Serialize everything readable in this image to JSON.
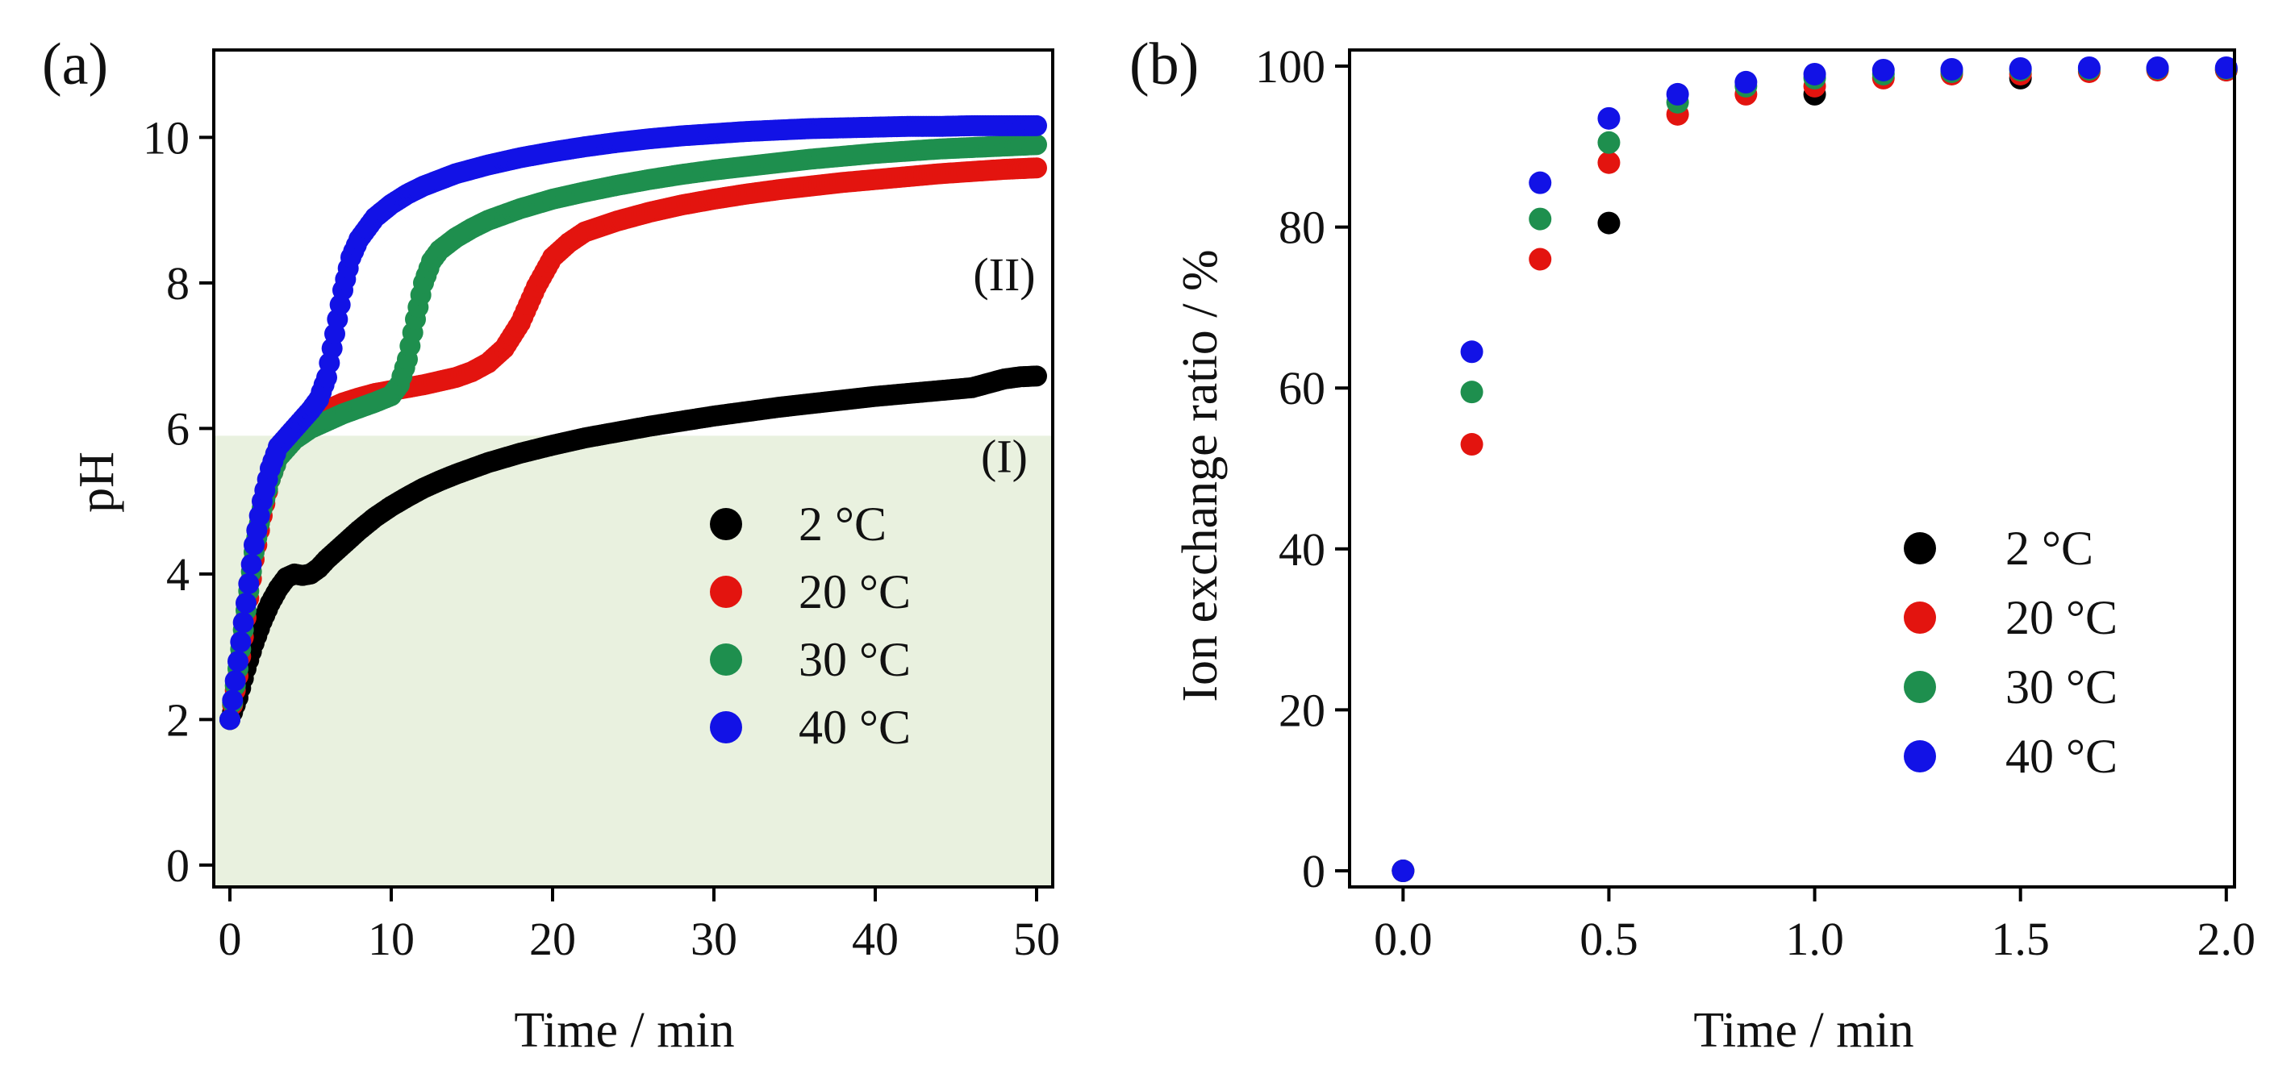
{
  "chart_data": [
    {
      "panel": "(a)",
      "type": "scatter",
      "xlabel": "Time / min",
      "ylabel": "pH",
      "xlim": [
        -1,
        51
      ],
      "ylim": [
        -0.3,
        11.2
      ],
      "xticks": [
        0,
        10,
        20,
        30,
        40,
        50
      ],
      "yticks": [
        0,
        2,
        4,
        6,
        8,
        10
      ],
      "grid": false,
      "shaded_region": {
        "y_from": -0.3,
        "y_to": 5.9,
        "color": "#e9f1df"
      },
      "annotations": [
        {
          "text": "(II)",
          "x": 48,
          "y": 7.9
        },
        {
          "text": "(I)",
          "x": 48,
          "y": 5.4
        }
      ],
      "legend": {
        "position": "center-right",
        "entries": [
          "2 °C",
          "20 °C",
          "30 °C",
          "40 °C"
        ]
      },
      "series": [
        {
          "name": "2 °C",
          "color": "#000000",
          "points": [
            [
              0,
              2.0
            ],
            [
              0.5,
              2.3
            ],
            [
              1,
              2.7
            ],
            [
              1.5,
              3.05
            ],
            [
              2,
              3.35
            ],
            [
              2.5,
              3.6
            ],
            [
              3,
              3.8
            ],
            [
              3.5,
              3.95
            ],
            [
              4,
              4.0
            ],
            [
              4.5,
              3.98
            ],
            [
              5,
              4.0
            ],
            [
              5.5,
              4.08
            ],
            [
              6,
              4.2
            ],
            [
              7,
              4.4
            ],
            [
              8,
              4.6
            ],
            [
              9,
              4.78
            ],
            [
              10,
              4.93
            ],
            [
              11,
              5.06
            ],
            [
              12,
              5.18
            ],
            [
              13,
              5.28
            ],
            [
              14,
              5.37
            ],
            [
              15,
              5.45
            ],
            [
              16,
              5.53
            ],
            [
              18,
              5.66
            ],
            [
              20,
              5.77
            ],
            [
              22,
              5.87
            ],
            [
              24,
              5.95
            ],
            [
              26,
              6.03
            ],
            [
              28,
              6.1
            ],
            [
              30,
              6.17
            ],
            [
              32,
              6.23
            ],
            [
              34,
              6.29
            ],
            [
              36,
              6.34
            ],
            [
              38,
              6.39
            ],
            [
              40,
              6.44
            ],
            [
              42,
              6.48
            ],
            [
              44,
              6.52
            ],
            [
              46,
              6.56
            ],
            [
              47,
              6.62
            ],
            [
              48,
              6.68
            ],
            [
              49,
              6.71
            ],
            [
              50,
              6.72
            ]
          ]
        },
        {
          "name": "20 °C",
          "color": "#e3140f",
          "points": [
            [
              0,
              2.0
            ],
            [
              0.5,
              2.6
            ],
            [
              1,
              3.4
            ],
            [
              1.5,
              4.2
            ],
            [
              2,
              4.8
            ],
            [
              2.5,
              5.3
            ],
            [
              3,
              5.6
            ],
            [
              4,
              5.9
            ],
            [
              5,
              6.1
            ],
            [
              6,
              6.25
            ],
            [
              7,
              6.35
            ],
            [
              8,
              6.42
            ],
            [
              9,
              6.48
            ],
            [
              10,
              6.52
            ],
            [
              11,
              6.56
            ],
            [
              12,
              6.6
            ],
            [
              13,
              6.65
            ],
            [
              14,
              6.7
            ],
            [
              15,
              6.78
            ],
            [
              16,
              6.9
            ],
            [
              17,
              7.1
            ],
            [
              18,
              7.45
            ],
            [
              19,
              7.95
            ],
            [
              20,
              8.35
            ],
            [
              21,
              8.55
            ],
            [
              22,
              8.7
            ],
            [
              24,
              8.85
            ],
            [
              26,
              8.97
            ],
            [
              28,
              9.07
            ],
            [
              30,
              9.15
            ],
            [
              32,
              9.22
            ],
            [
              34,
              9.28
            ],
            [
              36,
              9.33
            ],
            [
              38,
              9.38
            ],
            [
              40,
              9.42
            ],
            [
              42,
              9.46
            ],
            [
              44,
              9.5
            ],
            [
              46,
              9.53
            ],
            [
              48,
              9.56
            ],
            [
              50,
              9.58
            ]
          ]
        },
        {
          "name": "30 °C",
          "color": "#1e8f4e",
          "points": [
            [
              0,
              2.0
            ],
            [
              0.5,
              2.7
            ],
            [
              1,
              3.5
            ],
            [
              1.5,
              4.3
            ],
            [
              2,
              4.9
            ],
            [
              2.5,
              5.3
            ],
            [
              3,
              5.6
            ],
            [
              4,
              5.85
            ],
            [
              5,
              6.0
            ],
            [
              6,
              6.1
            ],
            [
              7,
              6.2
            ],
            [
              8,
              6.28
            ],
            [
              9,
              6.36
            ],
            [
              10,
              6.45
            ],
            [
              10.5,
              6.6
            ],
            [
              11,
              6.95
            ],
            [
              11.5,
              7.5
            ],
            [
              12,
              8.0
            ],
            [
              12.5,
              8.3
            ],
            [
              13,
              8.45
            ],
            [
              14,
              8.62
            ],
            [
              15,
              8.75
            ],
            [
              16,
              8.86
            ],
            [
              18,
              9.02
            ],
            [
              20,
              9.15
            ],
            [
              22,
              9.25
            ],
            [
              24,
              9.34
            ],
            [
              26,
              9.42
            ],
            [
              28,
              9.49
            ],
            [
              30,
              9.55
            ],
            [
              32,
              9.6
            ],
            [
              34,
              9.65
            ],
            [
              36,
              9.7
            ],
            [
              38,
              9.74
            ],
            [
              40,
              9.78
            ],
            [
              42,
              9.81
            ],
            [
              44,
              9.84
            ],
            [
              46,
              9.86
            ],
            [
              48,
              9.88
            ],
            [
              50,
              9.9
            ]
          ]
        },
        {
          "name": "40 °C",
          "color": "#1212e6",
          "points": [
            [
              0,
              2.0
            ],
            [
              0.5,
              2.8
            ],
            [
              1,
              3.6
            ],
            [
              1.5,
              4.4
            ],
            [
              2,
              5.0
            ],
            [
              2.5,
              5.45
            ],
            [
              3,
              5.75
            ],
            [
              4,
              6.0
            ],
            [
              5,
              6.25
            ],
            [
              5.5,
              6.4
            ],
            [
              6,
              6.7
            ],
            [
              6.5,
              7.3
            ],
            [
              7,
              7.9
            ],
            [
              7.5,
              8.35
            ],
            [
              8,
              8.6
            ],
            [
              9,
              8.9
            ],
            [
              10,
              9.08
            ],
            [
              11,
              9.22
            ],
            [
              12,
              9.33
            ],
            [
              14,
              9.5
            ],
            [
              16,
              9.62
            ],
            [
              18,
              9.72
            ],
            [
              20,
              9.8
            ],
            [
              22,
              9.87
            ],
            [
              24,
              9.93
            ],
            [
              26,
              9.98
            ],
            [
              28,
              10.02
            ],
            [
              30,
              10.05
            ],
            [
              32,
              10.08
            ],
            [
              34,
              10.1
            ],
            [
              36,
              10.12
            ],
            [
              38,
              10.13
            ],
            [
              40,
              10.14
            ],
            [
              42,
              10.15
            ],
            [
              44,
              10.15
            ],
            [
              46,
              10.16
            ],
            [
              48,
              10.16
            ],
            [
              50,
              10.16
            ]
          ]
        }
      ]
    },
    {
      "panel": "(b)",
      "type": "scatter",
      "xlabel": "Time / min",
      "ylabel": "Ion exchange ratio / %",
      "xlim": [
        -0.13,
        2.02
      ],
      "ylim": [
        -2,
        102
      ],
      "xticks": [
        "0.0",
        "0.5",
        "1.0",
        "1.5",
        "2.0"
      ],
      "yticks": [
        0,
        20,
        40,
        60,
        80,
        100
      ],
      "grid": false,
      "legend": {
        "position": "lower-right",
        "entries": [
          "2 °C",
          "20 °C",
          "30 °C",
          "40 °C"
        ]
      },
      "series": [
        {
          "name": "2 °C",
          "color": "#000000",
          "points": [
            [
              0,
              0
            ],
            [
              0.5,
              80.5
            ],
            [
              1.0,
              96.5
            ],
            [
              1.5,
              98.5
            ],
            [
              2.0,
              99.5
            ]
          ]
        },
        {
          "name": "20 °C",
          "color": "#e3140f",
          "points": [
            [
              0,
              0
            ],
            [
              0.167,
              53
            ],
            [
              0.333,
              76
            ],
            [
              0.5,
              88
            ],
            [
              0.667,
              94
            ],
            [
              0.833,
              96.5
            ],
            [
              1.0,
              97.5
            ],
            [
              1.167,
              98.5
            ],
            [
              1.333,
              99
            ],
            [
              1.5,
              99
            ],
            [
              1.667,
              99.3
            ],
            [
              1.833,
              99.5
            ],
            [
              2.0,
              99.5
            ]
          ]
        },
        {
          "name": "30 °C",
          "color": "#1e8f4e",
          "points": [
            [
              0,
              0
            ],
            [
              0.167,
              59.5
            ],
            [
              0.333,
              81
            ],
            [
              0.5,
              90.5
            ],
            [
              0.667,
              95.5
            ],
            [
              0.833,
              97.5
            ],
            [
              1.0,
              98.5
            ],
            [
              1.167,
              99
            ],
            [
              1.333,
              99.3
            ],
            [
              1.5,
              99.5
            ],
            [
              1.667,
              99.6
            ],
            [
              1.833,
              99.7
            ],
            [
              2.0,
              99.7
            ]
          ]
        },
        {
          "name": "40 °C",
          "color": "#1212e6",
          "points": [
            [
              0,
              0
            ],
            [
              0.167,
              64.5
            ],
            [
              0.333,
              85.5
            ],
            [
              0.5,
              93.5
            ],
            [
              0.667,
              96.5
            ],
            [
              0.833,
              98
            ],
            [
              1.0,
              99
            ],
            [
              1.167,
              99.5
            ],
            [
              1.333,
              99.6
            ],
            [
              1.5,
              99.7
            ],
            [
              1.667,
              99.8
            ],
            [
              1.833,
              99.8
            ],
            [
              2.0,
              99.8
            ]
          ]
        }
      ]
    }
  ]
}
